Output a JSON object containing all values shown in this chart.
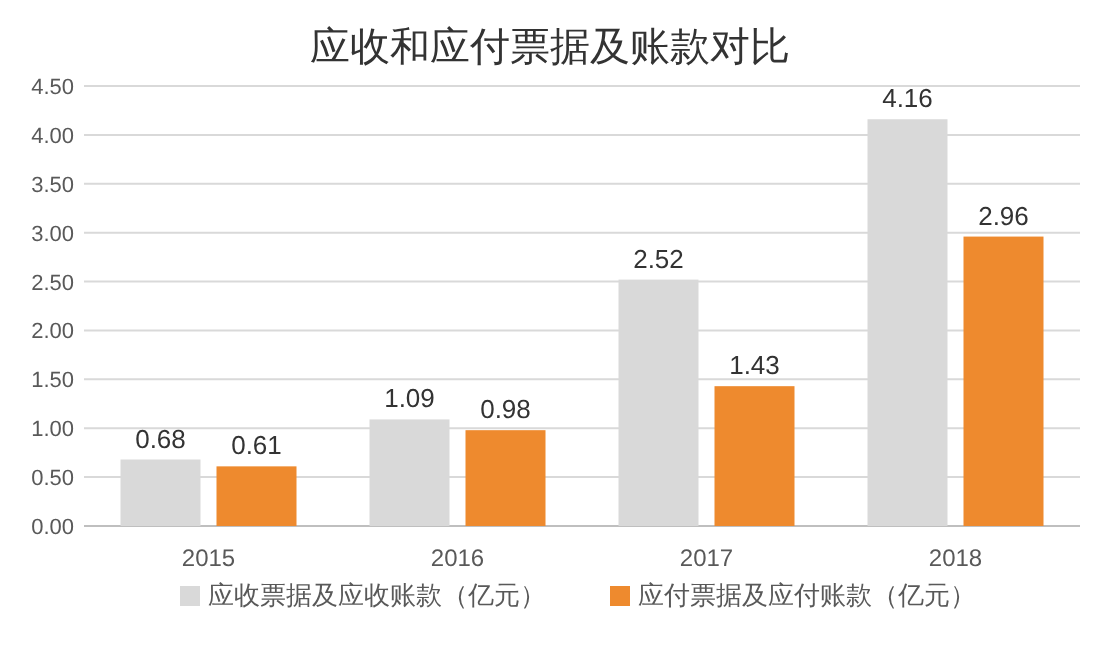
{
  "chart_data": {
    "type": "bar",
    "title": "应收和应付票据及账款对比",
    "categories": [
      "2015",
      "2016",
      "2017",
      "2018"
    ],
    "series": [
      {
        "name": "应收票据及应收账款（亿元）",
        "color": "#d9d9d9",
        "values": [
          0.68,
          1.09,
          2.52,
          4.16
        ]
      },
      {
        "name": "应付票据及应付账款（亿元）",
        "color": "#ee8a2e",
        "values": [
          0.61,
          0.98,
          1.43,
          2.96
        ]
      }
    ],
    "ylim": [
      0,
      4.5
    ],
    "yticks": [
      {
        "value": 0,
        "label": "0.00"
      },
      {
        "value": 0.5,
        "label": "0.50"
      },
      {
        "value": 1,
        "label": "1.00"
      },
      {
        "value": 1.5,
        "label": "1.50"
      },
      {
        "value": 2,
        "label": "2.00"
      },
      {
        "value": 2.5,
        "label": "2.50"
      },
      {
        "value": 3,
        "label": "3.00"
      },
      {
        "value": 3.5,
        "label": "3.50"
      },
      {
        "value": 4,
        "label": "4.00"
      },
      {
        "value": 4.5,
        "label": "4.50"
      }
    ],
    "grid": "y",
    "data_labels": true,
    "legend": "bottom"
  }
}
